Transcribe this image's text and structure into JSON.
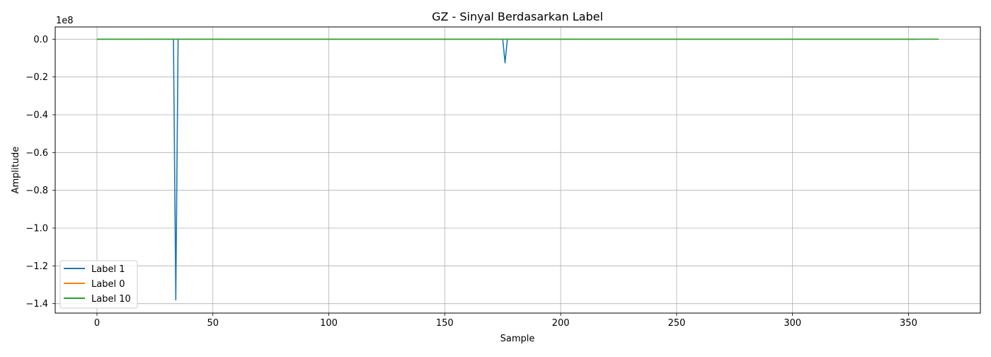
{
  "chart_data": {
    "type": "line",
    "title": "GZ - Sinyal Berdasarkan Label",
    "xlabel": "Sample",
    "ylabel": "Amplitude",
    "y_offset_label": "1e8",
    "y_scale": 100000000,
    "xlim": [
      -18,
      381
    ],
    "ylim": [
      -145000000,
      6500000
    ],
    "x_ticks": [
      0,
      50,
      100,
      150,
      200,
      250,
      300,
      350
    ],
    "x_tick_labels": [
      "0",
      "50",
      "100",
      "150",
      "200",
      "250",
      "300",
      "350"
    ],
    "y_ticks": [
      0,
      -20000000,
      -40000000,
      -60000000,
      -80000000,
      -100000000,
      -120000000,
      -140000000
    ],
    "y_tick_labels": [
      "0.0",
      "−0.2",
      "−0.4",
      "−0.6",
      "−0.8",
      "−1.0",
      "−1.2",
      "−1.4"
    ],
    "grid": true,
    "legend_position": "lower-left",
    "series": [
      {
        "name": "Label 1",
        "color": "#1f77b4",
        "points": [
          [
            0,
            0
          ],
          [
            33,
            0
          ],
          [
            34,
            -138000000
          ],
          [
            35,
            0
          ],
          [
            175,
            0
          ],
          [
            176,
            -12500000
          ],
          [
            177,
            0
          ],
          [
            354,
            0
          ]
        ]
      },
      {
        "name": "Label 0",
        "color": "#ff7f0e",
        "points": [
          [
            0,
            0
          ],
          [
            354,
            0
          ]
        ]
      },
      {
        "name": "Label 10",
        "color": "#2ca02c",
        "points": [
          [
            0,
            0
          ],
          [
            363,
            0
          ]
        ]
      }
    ]
  }
}
